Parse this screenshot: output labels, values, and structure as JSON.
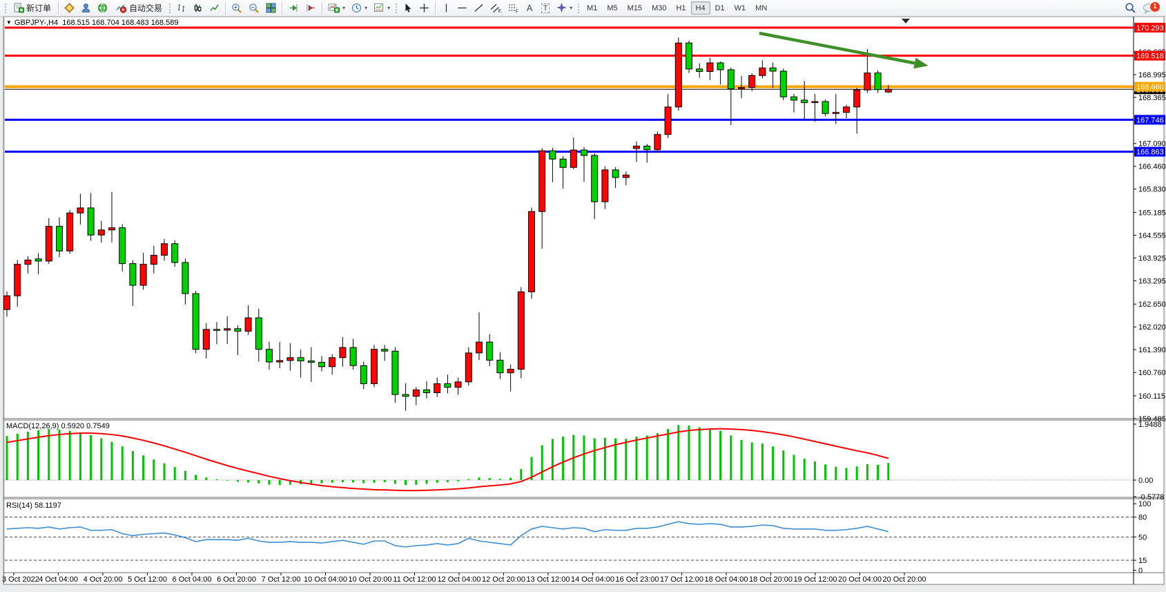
{
  "toolbar": {
    "new_order_label": "新订单",
    "auto_trading_label": "自动交易",
    "timeframes": [
      "M1",
      "M5",
      "M15",
      "M30",
      "H1",
      "H4",
      "D1",
      "W1",
      "MN"
    ],
    "active_timeframe": "H4",
    "notification_count": "1",
    "icon_letters": {
      "channel": "E",
      "fibo": "F",
      "text": "A",
      "label": "T"
    }
  },
  "icons": {
    "dropdown": "▾",
    "title_dropdown": "▼"
  },
  "chart": {
    "symbol_period": "GBPJPY-,H4",
    "ohlc_line": "168.515 168.704 168.483 168.589"
  },
  "chart_data": [
    {
      "type": "candlestick",
      "symbol": "GBPJPY-",
      "timeframe": "H4",
      "current_bar_ohlc": {
        "open": 168.515,
        "high": 168.704,
        "low": 168.483,
        "close": 168.589
      },
      "up_color": "#fb0505",
      "down_color": "#00d300",
      "wick_color": "#000000",
      "y_ticks": [
        169.625,
        168.995,
        168.365,
        167.09,
        166.46,
        165.83,
        165.185,
        164.555,
        163.925,
        163.295,
        162.65,
        162.02,
        161.39,
        160.76,
        160.115,
        159.485
      ],
      "x_labels": [
        "3 Oct 2022",
        "4 Oct 04:00",
        "4 Oct 20:00",
        "5 Oct 12:00",
        "6 Oct 04:00",
        "6 Oct 20:00",
        "7 Oct 12:00",
        "10 Oct 04:00",
        "10 Oct 20:00",
        "11 Oct 12:00",
        "12 Oct 04:00",
        "12 Oct 20:00",
        "13 Oct 12:00",
        "14 Oct 04:00",
        "16 Oct 23:00",
        "17 Oct 12:00",
        "18 Oct 04:00",
        "18 Oct 20:00",
        "19 Oct 12:00",
        "20 Oct 04:00",
        "20 Oct 20:00"
      ],
      "hlines": [
        {
          "price": 170.293,
          "color": "#ff0000",
          "width": 3
        },
        {
          "price": 169.518,
          "color": "#ff0000",
          "width": 3
        },
        {
          "price": 168.66,
          "color": "#ffa500",
          "width": 4
        },
        {
          "price": 167.746,
          "color": "#0000ff",
          "width": 3
        },
        {
          "price": 166.863,
          "color": "#0000ff",
          "width": 3
        }
      ],
      "current_price": 168.589,
      "price_badges": [
        {
          "value": "170.293",
          "color": "#ff0000",
          "price": 170.293
        },
        {
          "value": "169.518",
          "color": "#ff0000",
          "price": 169.518
        },
        {
          "value": "168.589",
          "color": "#000000",
          "price": 168.589
        },
        {
          "value": "168.660",
          "color": "#ffa500",
          "price": 168.66
        },
        {
          "value": "167.746",
          "color": "#0000ff",
          "price": 167.746
        },
        {
          "value": "166.863",
          "color": "#0000ff",
          "price": 166.863
        }
      ],
      "trend_arrow": {
        "from_bar": 71.7,
        "from_price": 170.14,
        "to_bar": 87.8,
        "to_price": 169.24,
        "color": "#3e8f28"
      },
      "candles": [
        [
          162.5,
          163.0,
          162.3,
          162.88
        ],
        [
          162.88,
          163.87,
          162.58,
          163.75
        ],
        [
          163.75,
          163.97,
          163.5,
          163.87
        ],
        [
          163.9,
          164.06,
          163.48,
          163.84
        ],
        [
          163.84,
          165.02,
          163.76,
          164.8
        ],
        [
          164.8,
          165.05,
          163.95,
          164.12
        ],
        [
          164.12,
          165.25,
          164.04,
          165.17
        ],
        [
          165.17,
          165.7,
          164.85,
          165.31
        ],
        [
          165.31,
          165.72,
          164.4,
          164.56
        ],
        [
          164.56,
          164.95,
          164.35,
          164.7
        ],
        [
          164.7,
          165.75,
          164.36,
          164.76
        ],
        [
          164.76,
          164.86,
          163.55,
          163.77
        ],
        [
          163.77,
          163.86,
          162.6,
          163.17
        ],
        [
          163.17,
          164.07,
          163.05,
          163.75
        ],
        [
          163.75,
          164.26,
          163.5,
          164.0
        ],
        [
          164.0,
          164.45,
          163.85,
          164.32
        ],
        [
          164.32,
          164.41,
          163.68,
          163.8
        ],
        [
          163.8,
          163.91,
          162.64,
          162.94
        ],
        [
          162.94,
          163.02,
          161.29,
          161.4
        ],
        [
          161.4,
          162.12,
          161.15,
          161.95
        ],
        [
          161.95,
          162.15,
          161.54,
          161.93
        ],
        [
          161.93,
          162.31,
          161.55,
          161.97
        ],
        [
          161.97,
          162.06,
          161.24,
          161.9
        ],
        [
          161.9,
          162.62,
          161.8,
          162.27
        ],
        [
          162.27,
          162.52,
          161.06,
          161.4
        ],
        [
          161.4,
          161.61,
          160.84,
          161.05
        ],
        [
          161.05,
          161.6,
          160.88,
          161.09
        ],
        [
          161.09,
          161.57,
          160.81,
          161.17
        ],
        [
          161.17,
          161.39,
          160.62,
          161.08
        ],
        [
          161.08,
          161.46,
          160.5,
          161.04
        ],
        [
          161.04,
          161.21,
          160.79,
          160.92
        ],
        [
          160.92,
          161.26,
          160.7,
          161.17
        ],
        [
          161.17,
          161.74,
          160.92,
          161.45
        ],
        [
          161.45,
          161.69,
          160.84,
          160.95
        ],
        [
          160.95,
          161.06,
          160.3,
          160.45
        ],
        [
          160.45,
          161.52,
          160.35,
          161.4
        ],
        [
          161.4,
          161.52,
          161.08,
          161.35
        ],
        [
          161.35,
          161.46,
          159.92,
          160.15
        ],
        [
          160.15,
          160.46,
          159.7,
          160.1
        ],
        [
          160.1,
          160.36,
          159.86,
          160.28
        ],
        [
          160.28,
          160.52,
          160.04,
          160.2
        ],
        [
          160.2,
          160.62,
          160.08,
          160.45
        ],
        [
          160.45,
          160.7,
          160.18,
          160.35
        ],
        [
          160.35,
          160.62,
          160.14,
          160.5
        ],
        [
          160.5,
          161.46,
          160.4,
          161.3
        ],
        [
          161.3,
          162.42,
          161.1,
          161.6
        ],
        [
          161.6,
          161.82,
          160.94,
          161.1
        ],
        [
          161.1,
          161.32,
          160.58,
          160.75
        ],
        [
          160.75,
          160.98,
          160.24,
          160.85
        ],
        [
          160.85,
          163.12,
          160.6,
          162.99
        ],
        [
          162.99,
          165.32,
          162.8,
          165.21
        ],
        [
          165.21,
          166.96,
          164.18,
          166.89
        ],
        [
          166.89,
          166.97,
          166.02,
          166.66
        ],
        [
          166.66,
          166.74,
          165.84,
          166.43
        ],
        [
          166.43,
          167.26,
          166.38,
          166.91
        ],
        [
          166.91,
          166.99,
          166.03,
          166.76
        ],
        [
          166.76,
          166.82,
          165.0,
          165.48
        ],
        [
          165.48,
          166.46,
          165.28,
          166.36
        ],
        [
          166.36,
          166.44,
          165.86,
          166.15
        ],
        [
          166.15,
          166.32,
          165.94,
          166.22
        ],
        [
          166.95,
          167.15,
          166.58,
          167.02
        ],
        [
          167.02,
          167.08,
          166.56,
          166.92
        ],
        [
          166.92,
          167.42,
          166.84,
          167.34
        ],
        [
          167.34,
          168.46,
          167.24,
          168.1
        ],
        [
          168.1,
          170.02,
          168.0,
          169.87
        ],
        [
          169.87,
          169.93,
          169.04,
          169.15
        ],
        [
          169.15,
          169.31,
          168.91,
          169.08
        ],
        [
          169.08,
          169.46,
          168.84,
          169.32
        ],
        [
          169.32,
          169.36,
          168.72,
          169.13
        ],
        [
          169.13,
          169.19,
          167.6,
          168.6
        ],
        [
          168.6,
          168.96,
          168.34,
          168.64
        ],
        [
          168.64,
          169.03,
          168.54,
          168.97
        ],
        [
          168.97,
          169.39,
          168.89,
          169.18
        ],
        [
          169.18,
          169.33,
          168.62,
          169.09
        ],
        [
          169.09,
          169.16,
          168.29,
          168.38
        ],
        [
          168.38,
          168.46,
          167.95,
          168.29
        ],
        [
          168.29,
          168.82,
          167.74,
          168.22
        ],
        [
          168.22,
          168.46,
          167.69,
          168.25
        ],
        [
          168.25,
          168.31,
          167.84,
          167.92
        ],
        [
          167.92,
          168.46,
          167.63,
          167.95
        ],
        [
          167.95,
          168.16,
          167.79,
          168.1
        ],
        [
          168.1,
          168.63,
          167.36,
          168.57
        ],
        [
          168.57,
          169.7,
          168.49,
          169.04
        ],
        [
          169.04,
          169.11,
          168.49,
          168.58
        ],
        [
          168.515,
          168.704,
          168.483,
          168.589
        ]
      ]
    },
    {
      "type": "macd",
      "label": "MACD(12,26,9) 0.5920 0.7549",
      "params": "12,26,9",
      "macd_value": 0.592,
      "signal_value": 0.7549,
      "y_ticks": [
        1.9488,
        0.0,
        -0.5778
      ],
      "histogram_color": "#00c400",
      "signal_color": "#ff0000",
      "histogram": [
        1.52,
        1.6,
        1.67,
        1.72,
        1.76,
        1.74,
        1.7,
        1.64,
        1.55,
        1.44,
        1.32,
        1.16,
        1.0,
        0.85,
        0.71,
        0.58,
        0.45,
        0.32,
        0.18,
        0.09,
        0.03,
        -0.02,
        -0.06,
        -0.08,
        -0.12,
        -0.16,
        -0.17,
        -0.16,
        -0.14,
        -0.12,
        -0.11,
        -0.09,
        -0.07,
        -0.08,
        -0.11,
        -0.09,
        -0.07,
        -0.13,
        -0.17,
        -0.16,
        -0.13,
        -0.09,
        -0.07,
        -0.04,
        0.03,
        0.09,
        0.07,
        0.04,
        0.08,
        0.38,
        0.8,
        1.2,
        1.42,
        1.5,
        1.56,
        1.54,
        1.44,
        1.46,
        1.44,
        1.42,
        1.5,
        1.54,
        1.62,
        1.76,
        1.9,
        1.88,
        1.82,
        1.78,
        1.7,
        1.54,
        1.38,
        1.3,
        1.26,
        1.16,
        1.02,
        0.87,
        0.74,
        0.64,
        0.54,
        0.46,
        0.42,
        0.47,
        0.55,
        0.53,
        0.59
      ],
      "signal": [
        1.3,
        1.36,
        1.42,
        1.48,
        1.53,
        1.57,
        1.6,
        1.62,
        1.62,
        1.6,
        1.57,
        1.52,
        1.45,
        1.37,
        1.28,
        1.18,
        1.07,
        0.96,
        0.84,
        0.72,
        0.61,
        0.5,
        0.4,
        0.31,
        0.22,
        0.13,
        0.05,
        -0.02,
        -0.08,
        -0.14,
        -0.19,
        -0.23,
        -0.26,
        -0.29,
        -0.31,
        -0.33,
        -0.34,
        -0.35,
        -0.36,
        -0.36,
        -0.35,
        -0.34,
        -0.32,
        -0.3,
        -0.27,
        -0.23,
        -0.2,
        -0.17,
        -0.13,
        -0.05,
        0.1,
        0.28,
        0.46,
        0.62,
        0.77,
        0.9,
        1.02,
        1.12,
        1.22,
        1.3,
        1.38,
        1.45,
        1.52,
        1.59,
        1.66,
        1.71,
        1.74,
        1.76,
        1.77,
        1.76,
        1.74,
        1.71,
        1.67,
        1.62,
        1.56,
        1.49,
        1.41,
        1.33,
        1.25,
        1.17,
        1.09,
        1.01,
        0.94,
        0.85,
        0.75
      ]
    },
    {
      "type": "rsi",
      "label": "RSI(14) 58.1197",
      "period": 14,
      "value": 58.1197,
      "line_color": "#3e8ed0",
      "levels": [
        100,
        80,
        50,
        15,
        0
      ],
      "dashed_levels": [
        80,
        50,
        15
      ],
      "values": [
        62,
        63,
        64,
        63,
        65,
        62,
        64,
        65,
        60,
        60,
        61,
        55,
        52,
        54,
        55,
        56,
        53,
        49,
        43,
        46,
        46,
        46,
        45,
        48,
        44,
        42,
        42,
        43,
        42,
        42,
        41,
        43,
        45,
        42,
        39,
        44,
        44,
        37,
        35,
        37,
        38,
        40,
        38,
        40,
        48,
        44,
        42,
        40,
        38,
        52,
        62,
        66,
        64,
        62,
        64,
        63,
        58,
        61,
        60,
        60,
        63,
        63,
        65,
        69,
        73,
        70,
        69,
        70,
        69,
        65,
        65,
        66,
        68,
        67,
        63,
        62,
        62,
        62,
        60,
        60,
        61,
        63,
        66,
        62,
        58.1
      ]
    }
  ]
}
